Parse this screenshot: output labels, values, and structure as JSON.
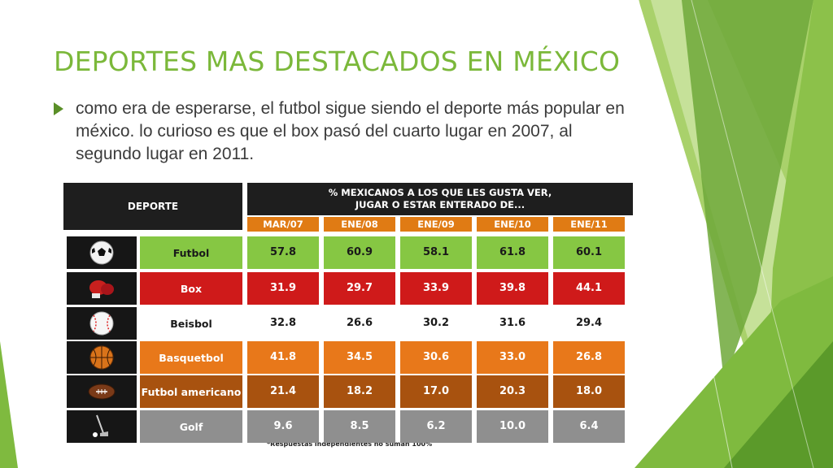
{
  "slide": {
    "title": "DEPORTES MAS DESTACADOS  EN MÉXICO",
    "bullet": "como era de esperarse, el futbol sigue siendo el deporte más popular en méxico. lo curioso es que el box pasó del cuarto lugar en 2007, al segundo lugar en 2011."
  },
  "table": {
    "sport_header": "DEPORTE",
    "title_line1": "% MEXICANOS A LOS QUE LES GUSTA VER,",
    "title_line2": "JUGAR O ESTAR ENTERADO DE...",
    "years": [
      "MAR/07",
      "ENE/08",
      "ENE/09",
      "ENE/10",
      "ENE/11"
    ],
    "rows": [
      {
        "sport": "Futbol",
        "icon": "soccer-ball-icon",
        "values": [
          "57.8",
          "60.9",
          "58.1",
          "61.8",
          "60.1"
        ],
        "color": "#86c743",
        "text_color": "#1a1a1a"
      },
      {
        "sport": "Box",
        "icon": "boxing-glove-icon",
        "values": [
          "31.9",
          "29.7",
          "33.9",
          "39.8",
          "44.1"
        ],
        "color": "#cf1a1a",
        "text_color": "#ffffff"
      },
      {
        "sport": "Beisbol",
        "icon": "baseball-icon",
        "values": [
          "32.8",
          "26.6",
          "30.2",
          "31.6",
          "29.4"
        ],
        "color": "#ffffff",
        "text_color": "#1a1a1a"
      },
      {
        "sport": "Basquetbol",
        "icon": "basketball-icon",
        "values": [
          "41.8",
          "34.5",
          "30.6",
          "33.0",
          "26.8"
        ],
        "color": "#e8781a",
        "text_color": "#ffffff"
      },
      {
        "sport": "Futbol americano",
        "icon": "american-football-icon",
        "values": [
          "21.4",
          "18.2",
          "17.0",
          "20.3",
          "18.0"
        ],
        "color": "#a8520f",
        "text_color": "#ffffff"
      },
      {
        "sport": "Golf",
        "icon": "golf-club-icon",
        "values": [
          "9.6",
          "8.5",
          "6.2",
          "10.0",
          "6.4"
        ],
        "color": "#8f8f8f",
        "text_color": "#ffffff"
      }
    ],
    "footnote": "*Respuestas independientes no suman 100%"
  },
  "colors": {
    "title_green": "#7bb83a",
    "deco_green_light": "#c6df9a",
    "deco_green_dark": "#5a9a2a",
    "header_black": "#1e1e1e",
    "year_orange": "#e07b14"
  }
}
